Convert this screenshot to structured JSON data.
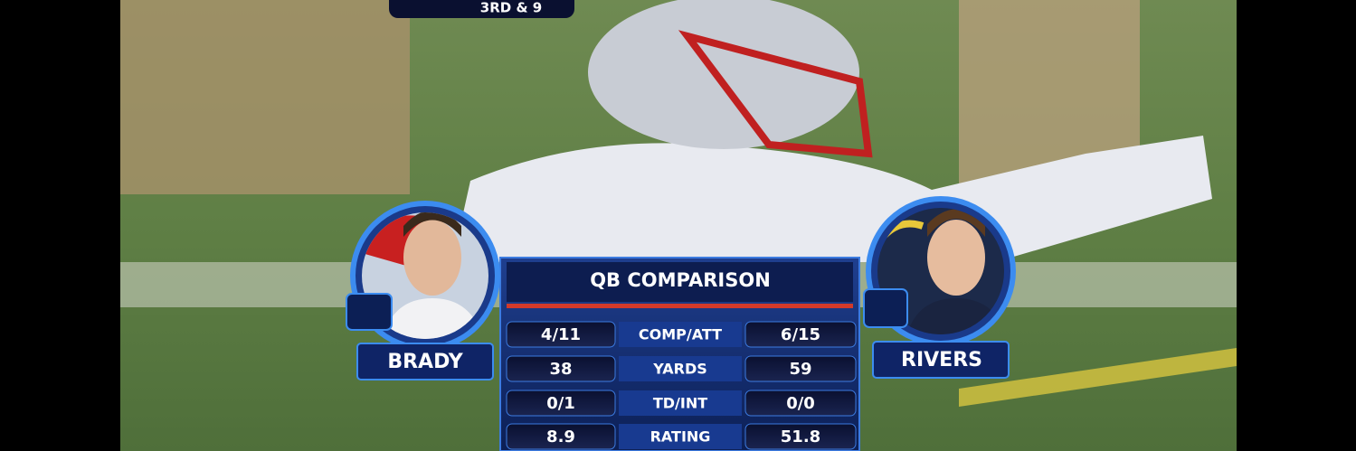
{
  "scoreboard": {
    "down": "3RD & 9"
  },
  "comparison": {
    "title": "QB COMPARISON",
    "players": [
      {
        "name": "BRADY"
      },
      {
        "name": "RIVERS"
      }
    ],
    "rows": [
      {
        "left": "4/11",
        "label": "COMP/ATT",
        "right": "6/15"
      },
      {
        "left": 38,
        "label": "YARDS",
        "right": 59
      },
      {
        "left": "0/1",
        "label": "TD/INT",
        "right": "0/0"
      },
      {
        "left": 8.9,
        "label": "RATING",
        "right": 51.8
      }
    ]
  }
}
